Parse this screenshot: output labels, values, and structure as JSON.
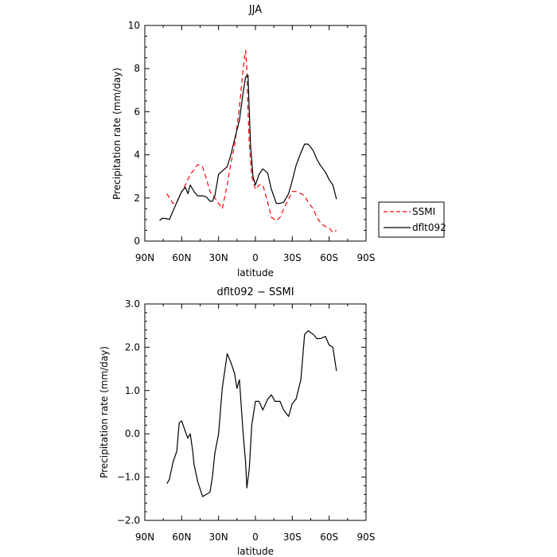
{
  "chart_data": [
    {
      "type": "line",
      "title": "JJA",
      "xlabel": "latitude",
      "ylabel": "Precipitation rate (mm/day)",
      "xlim": [
        90,
        -90
      ],
      "ylim": [
        0,
        10
      ],
      "xticks": [
        90,
        60,
        30,
        0,
        -30,
        -60,
        -90
      ],
      "xtick_labels": [
        "90N",
        "60N",
        "30N",
        "0",
        "30S",
        "60S",
        "90S"
      ],
      "yticks": [
        0,
        2,
        4,
        6,
        8,
        10
      ],
      "ytick_labels": [
        "0",
        "2",
        "4",
        "6",
        "8",
        "10"
      ],
      "grid": false,
      "legend": "outside-right",
      "series": [
        {
          "name": "SSMI",
          "color": "#ff0000",
          "dash": "dashed",
          "x": [
            72,
            70,
            67,
            64,
            60,
            57,
            53,
            50,
            47,
            43,
            40,
            37,
            33,
            30,
            27,
            23,
            20,
            17,
            13,
            10,
            8,
            7,
            6,
            5,
            3,
            0,
            -3,
            -6,
            -10,
            -13,
            -17,
            -20,
            -23,
            -27,
            -30,
            -33,
            -37,
            -40,
            -43,
            -47,
            -50,
            -53,
            -56,
            -60,
            -63,
            -66
          ],
          "y": [
            2.2,
            2.0,
            1.75,
            1.8,
            2.3,
            2.6,
            3.1,
            3.3,
            3.55,
            3.45,
            2.9,
            2.3,
            2.0,
            1.75,
            1.5,
            2.6,
            3.6,
            4.4,
            6.2,
            8.0,
            8.85,
            8.0,
            6.0,
            4.5,
            3.0,
            2.4,
            2.6,
            2.6,
            1.8,
            1.1,
            0.95,
            1.1,
            1.5,
            1.95,
            2.3,
            2.3,
            2.2,
            2.1,
            1.8,
            1.5,
            1.1,
            0.85,
            0.7,
            0.6,
            0.4,
            0.5
          ]
        },
        {
          "name": "dflt092",
          "color": "#000000",
          "dash": "solid",
          "x": [
            78,
            76,
            73,
            70,
            67,
            64,
            60,
            57,
            55,
            53,
            50,
            47,
            43,
            40,
            37,
            35,
            33,
            30,
            27,
            23,
            20,
            17,
            13,
            10,
            8,
            6,
            5,
            4,
            2,
            0,
            -3,
            -6,
            -10,
            -13,
            -17,
            -20,
            -23,
            -27,
            -30,
            -33,
            -37,
            -40,
            -43,
            -47,
            -50,
            -53,
            -57,
            -60,
            -63,
            -66
          ],
          "y": [
            0.95,
            1.05,
            1.05,
            1.0,
            1.4,
            1.8,
            2.3,
            2.5,
            2.2,
            2.6,
            2.3,
            2.1,
            2.1,
            2.05,
            1.85,
            1.85,
            2.1,
            3.1,
            3.25,
            3.45,
            4.0,
            4.7,
            5.6,
            6.9,
            7.6,
            7.7,
            6.0,
            4.5,
            3.0,
            2.6,
            3.1,
            3.35,
            3.15,
            2.4,
            1.75,
            1.75,
            1.8,
            2.2,
            2.8,
            3.5,
            4.1,
            4.5,
            4.5,
            4.2,
            3.8,
            3.5,
            3.2,
            2.85,
            2.6,
            1.95
          ]
        }
      ]
    },
    {
      "type": "line",
      "title": "dflt092 − SSMI",
      "xlabel": "latitude",
      "ylabel": "Precipitation rate (mm/day)",
      "xlim": [
        90,
        -90
      ],
      "ylim": [
        -2.0,
        3.0
      ],
      "xticks": [
        90,
        60,
        30,
        0,
        -30,
        -60,
        -90
      ],
      "xtick_labels": [
        "90N",
        "60N",
        "30N",
        "0",
        "30S",
        "60S",
        "90S"
      ],
      "yticks": [
        -2.0,
        -1.0,
        0.0,
        1.0,
        2.0,
        3.0
      ],
      "ytick_labels": [
        "−2.0",
        "−1.0",
        "0.0",
        "1.0",
        "2.0",
        "3.0"
      ],
      "grid": false,
      "series": [
        {
          "color": "#000000",
          "dash": "solid",
          "x": [
            72,
            70,
            67,
            64,
            62,
            60,
            57,
            55,
            53,
            51,
            50,
            47,
            43,
            40,
            37,
            35,
            33,
            30,
            27,
            23,
            20,
            17,
            15,
            13,
            10,
            8,
            7,
            5,
            3,
            0,
            -3,
            -6,
            -10,
            -13,
            -16,
            -20,
            -23,
            -27,
            -30,
            -33,
            -37,
            -40,
            -43,
            -47,
            -50,
            -53,
            -57,
            -60,
            -63,
            -66
          ],
          "y": [
            -1.15,
            -1.05,
            -0.65,
            -0.4,
            0.25,
            0.3,
            0.05,
            -0.1,
            0.0,
            -0.4,
            -0.7,
            -1.1,
            -1.45,
            -1.4,
            -1.35,
            -1.0,
            -0.45,
            0.0,
            1.05,
            1.85,
            1.65,
            1.4,
            1.05,
            1.25,
            0.0,
            -0.65,
            -1.25,
            -0.8,
            0.2,
            0.75,
            0.75,
            0.55,
            0.8,
            0.9,
            0.75,
            0.75,
            0.55,
            0.4,
            0.7,
            0.8,
            1.25,
            2.3,
            2.38,
            2.3,
            2.2,
            2.2,
            2.25,
            2.05,
            2.0,
            1.45
          ]
        }
      ]
    }
  ]
}
